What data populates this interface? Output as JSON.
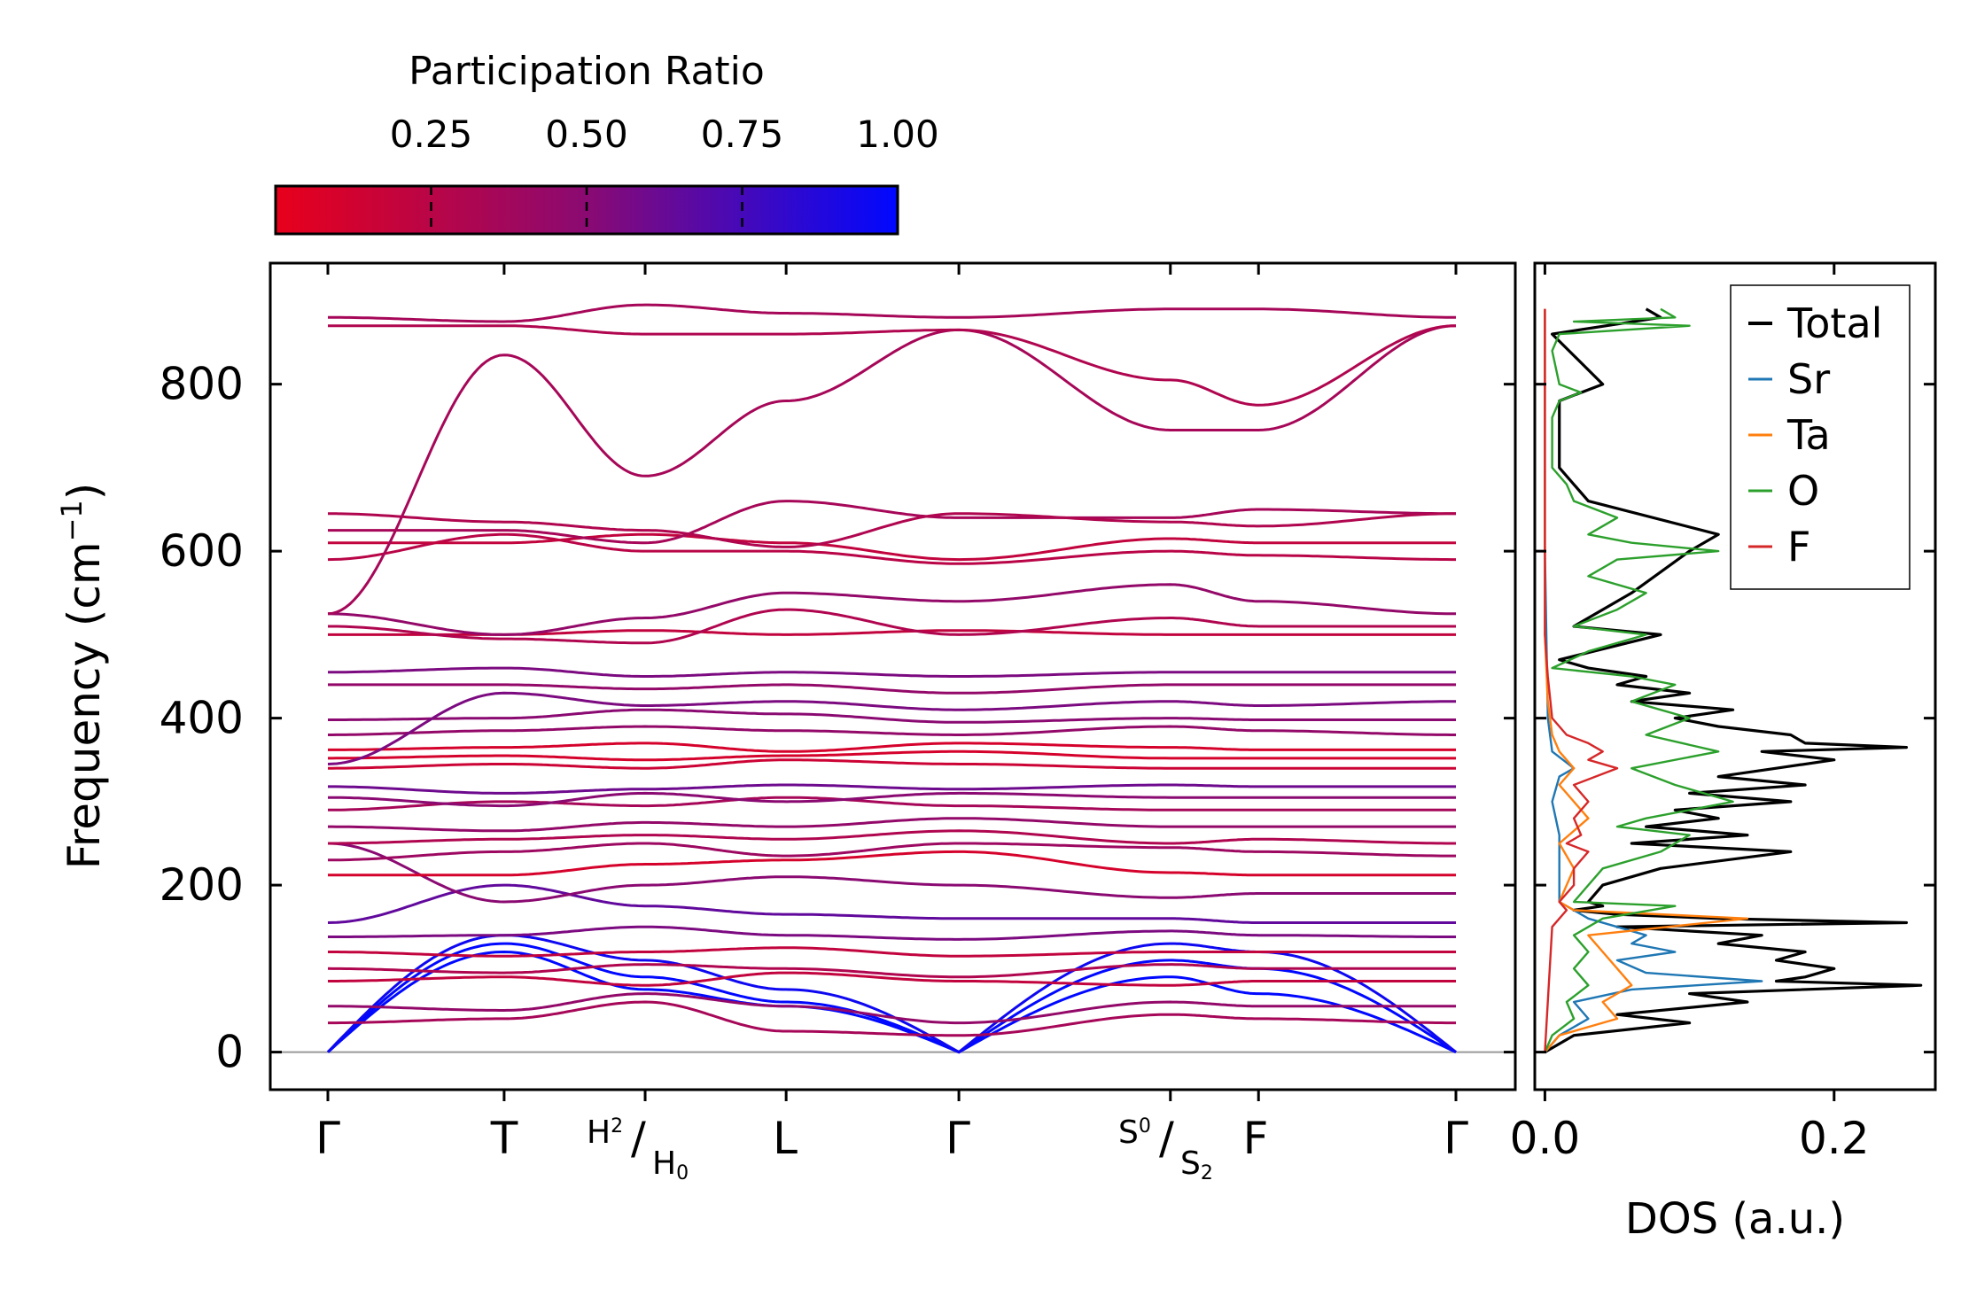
{
  "colorbar": {
    "title": "Participation Ratio",
    "ticks": [
      "0.25",
      "0.50",
      "0.75",
      "1.00"
    ],
    "tick_values": [
      0.25,
      0.5,
      0.75,
      1.0
    ],
    "range": [
      0.0,
      1.0
    ],
    "color_low": "#e8001b",
    "color_mid": "#8a0a72",
    "color_high": "#0008ff"
  },
  "chart_data": [
    {
      "id": "band-structure",
      "type": "line",
      "title": "",
      "ylabel": "Frequency (cm⁻¹)",
      "ylabel_base": "Frequency (cm",
      "ylabel_sup": "−1",
      "ylabel_close": ")",
      "ylim": [
        -45,
        945
      ],
      "yticks": [
        0,
        200,
        400,
        600,
        800
      ],
      "kpath": [
        "Γ",
        "T",
        "H2/H0",
        "L",
        "Γ",
        "S0/S2",
        "F",
        "Γ"
      ],
      "kpath_positions": [
        0.0,
        1.0,
        1.8,
        2.6,
        3.58,
        4.78,
        5.28,
        6.4
      ],
      "labels": {
        "gamma": "Γ",
        "T": "T",
        "L": "L",
        "F": "F",
        "H_main": "H",
        "H_sub_a": "2",
        "H_sub_b": "0",
        "S_main": "S",
        "S_sub_a": "0",
        "S_sub_b": "2"
      },
      "bands": [
        {
          "name": "acoustic-1",
          "pr": 1.0,
          "y": [
            0,
            120,
            75,
            55,
            0,
            90,
            70,
            0
          ]
        },
        {
          "name": "acoustic-2",
          "pr": 1.0,
          "y": [
            0,
            130,
            90,
            60,
            0,
            110,
            100,
            0
          ]
        },
        {
          "name": "acoustic-3",
          "pr": 0.95,
          "y": [
            0,
            140,
            110,
            75,
            0,
            130,
            120,
            0
          ]
        },
        {
          "name": "opt-035",
          "pr": 0.35,
          "y": [
            35,
            40,
            60,
            25,
            20,
            45,
            40,
            35
          ]
        },
        {
          "name": "opt-055",
          "pr": 0.45,
          "y": [
            55,
            50,
            70,
            55,
            35,
            60,
            55,
            55
          ]
        },
        {
          "name": "opt-085",
          "pr": 0.2,
          "y": [
            85,
            90,
            80,
            95,
            85,
            80,
            85,
            85
          ]
        },
        {
          "name": "opt-100",
          "pr": 0.3,
          "y": [
            100,
            95,
            105,
            100,
            90,
            105,
            100,
            100
          ]
        },
        {
          "name": "opt-120",
          "pr": 0.2,
          "y": [
            120,
            115,
            120,
            125,
            115,
            120,
            120,
            120
          ]
        },
        {
          "name": "opt-138",
          "pr": 0.55,
          "y": [
            138,
            140,
            150,
            140,
            135,
            145,
            140,
            138
          ]
        },
        {
          "name": "opt-155",
          "pr": 0.65,
          "y": [
            155,
            200,
            175,
            165,
            160,
            160,
            155,
            155
          ]
        },
        {
          "name": "opt-185",
          "pr": 0.5,
          "y": [
            250,
            180,
            200,
            210,
            200,
            185,
            190,
            190
          ]
        },
        {
          "name": "opt-212",
          "pr": 0.1,
          "y": [
            212,
            212,
            225,
            230,
            240,
            215,
            212,
            212
          ]
        },
        {
          "name": "opt-230",
          "pr": 0.4,
          "y": [
            230,
            240,
            250,
            235,
            250,
            245,
            240,
            235
          ]
        },
        {
          "name": "opt-250",
          "pr": 0.3,
          "y": [
            250,
            255,
            260,
            255,
            265,
            250,
            255,
            250
          ]
        },
        {
          "name": "opt-270",
          "pr": 0.45,
          "y": [
            270,
            265,
            275,
            270,
            280,
            270,
            270,
            270
          ]
        },
        {
          "name": "opt-290",
          "pr": 0.35,
          "y": [
            290,
            300,
            295,
            305,
            295,
            290,
            290,
            290
          ]
        },
        {
          "name": "opt-305",
          "pr": 0.5,
          "y": [
            305,
            295,
            310,
            300,
            310,
            305,
            305,
            305
          ]
        },
        {
          "name": "opt-318",
          "pr": 0.6,
          "y": [
            318,
            310,
            315,
            320,
            315,
            320,
            318,
            318
          ]
        },
        {
          "name": "opt-340",
          "pr": 0.15,
          "y": [
            340,
            345,
            340,
            350,
            345,
            340,
            340,
            340
          ]
        },
        {
          "name": "opt-352",
          "pr": 0.1,
          "y": [
            352,
            355,
            350,
            355,
            360,
            352,
            352,
            352
          ]
        },
        {
          "name": "opt-362",
          "pr": 0.1,
          "y": [
            362,
            365,
            370,
            360,
            370,
            365,
            362,
            362
          ]
        },
        {
          "name": "opt-380",
          "pr": 0.45,
          "y": [
            380,
            385,
            390,
            385,
            380,
            390,
            385,
            380
          ]
        },
        {
          "name": "opt-398",
          "pr": 0.5,
          "y": [
            398,
            400,
            410,
            405,
            395,
            400,
            398,
            398
          ]
        },
        {
          "name": "opt-420",
          "pr": 0.55,
          "y": [
            345,
            430,
            415,
            420,
            410,
            420,
            415,
            420
          ]
        },
        {
          "name": "opt-440",
          "pr": 0.45,
          "y": [
            440,
            440,
            435,
            440,
            430,
            440,
            440,
            440
          ]
        },
        {
          "name": "opt-455",
          "pr": 0.55,
          "y": [
            455,
            460,
            450,
            455,
            450,
            455,
            455,
            455
          ]
        },
        {
          "name": "opt-500",
          "pr": 0.2,
          "y": [
            500,
            500,
            505,
            500,
            505,
            500,
            500,
            500
          ]
        },
        {
          "name": "opt-510",
          "pr": 0.3,
          "y": [
            510,
            495,
            490,
            530,
            500,
            520,
            510,
            510
          ]
        },
        {
          "name": "opt-525",
          "pr": 0.45,
          "y": [
            525,
            500,
            520,
            550,
            540,
            560,
            540,
            525
          ]
        },
        {
          "name": "opt-590",
          "pr": 0.25,
          "y": [
            590,
            620,
            600,
            600,
            585,
            600,
            595,
            590
          ]
        },
        {
          "name": "opt-610",
          "pr": 0.2,
          "y": [
            610,
            610,
            620,
            610,
            590,
            615,
            610,
            610
          ]
        },
        {
          "name": "opt-625",
          "pr": 0.35,
          "y": [
            625,
            625,
            610,
            660,
            640,
            640,
            650,
            645
          ]
        },
        {
          "name": "opt-645",
          "pr": 0.3,
          "y": [
            645,
            635,
            625,
            605,
            645,
            635,
            630,
            645
          ]
        },
        {
          "name": "opt-835",
          "pr": 0.35,
          "y": [
            525,
            835,
            690,
            780,
            865,
            745,
            745,
            870
          ]
        },
        {
          "name": "opt-870",
          "pr": 0.3,
          "y": [
            870,
            870,
            860,
            860,
            865,
            805,
            775,
            870
          ]
        },
        {
          "name": "opt-880",
          "pr": 0.35,
          "y": [
            880,
            875,
            895,
            885,
            880,
            890,
            890,
            880
          ]
        }
      ]
    },
    {
      "id": "dos",
      "type": "line",
      "title": "",
      "xlabel": "DOS (a.u.)",
      "ylabel": "",
      "xlim": [
        -0.007,
        0.27
      ],
      "xticks": [
        "0.0",
        "0.2"
      ],
      "xtick_values": [
        0.0,
        0.2
      ],
      "ylim": [
        -45,
        945
      ],
      "legend_position": "top-right",
      "series": [
        {
          "name": "Total",
          "color": "#000000",
          "freq": [
            0,
            20,
            35,
            45,
            60,
            70,
            80,
            85,
            90,
            100,
            110,
            120,
            130,
            140,
            150,
            155,
            160,
            165,
            170,
            175,
            180,
            200,
            220,
            240,
            250,
            260,
            270,
            280,
            290,
            300,
            310,
            320,
            330,
            340,
            350,
            360,
            365,
            370,
            380,
            390,
            400,
            410,
            420,
            430,
            440,
            450,
            460,
            470,
            500,
            510,
            550,
            600,
            620,
            660,
            700,
            780,
            800,
            860,
            880,
            890
          ],
          "dos": [
            0.0,
            0.02,
            0.1,
            0.05,
            0.14,
            0.1,
            0.26,
            0.16,
            0.18,
            0.2,
            0.16,
            0.18,
            0.12,
            0.15,
            0.05,
            0.25,
            0.12,
            0.05,
            0.02,
            0.04,
            0.03,
            0.04,
            0.08,
            0.17,
            0.06,
            0.14,
            0.07,
            0.12,
            0.09,
            0.17,
            0.1,
            0.18,
            0.12,
            0.16,
            0.2,
            0.15,
            0.25,
            0.18,
            0.17,
            0.12,
            0.09,
            0.13,
            0.06,
            0.1,
            0.05,
            0.07,
            0.03,
            0.01,
            0.08,
            0.02,
            0.06,
            0.1,
            0.12,
            0.03,
            0.01,
            0.01,
            0.04,
            0.005,
            0.08,
            0.07
          ]
        },
        {
          "name": "Sr",
          "color": "#1f77b4",
          "freq": [
            0,
            20,
            40,
            60,
            75,
            85,
            95,
            110,
            120,
            130,
            140,
            160,
            180,
            220,
            260,
            300,
            330,
            340,
            360,
            400,
            600,
            890
          ],
          "dos": [
            0.0,
            0.01,
            0.03,
            0.02,
            0.06,
            0.15,
            0.07,
            0.05,
            0.09,
            0.06,
            0.07,
            0.03,
            0.01,
            0.01,
            0.01,
            0.005,
            0.01,
            0.02,
            0.005,
            0.002,
            0.0,
            0.0
          ]
        },
        {
          "name": "Ta",
          "color": "#ff7f0e",
          "freq": [
            0,
            20,
            40,
            60,
            80,
            100,
            120,
            140,
            160,
            170,
            180,
            220,
            250,
            280,
            300,
            320,
            340,
            360,
            380,
            420,
            500,
            890
          ],
          "dos": [
            0.0,
            0.01,
            0.05,
            0.04,
            0.06,
            0.05,
            0.04,
            0.03,
            0.14,
            0.02,
            0.01,
            0.02,
            0.01,
            0.03,
            0.02,
            0.01,
            0.02,
            0.01,
            0.005,
            0.002,
            0.0,
            0.0
          ]
        },
        {
          "name": "O",
          "color": "#2ca02c",
          "freq": [
            0,
            20,
            40,
            60,
            80,
            100,
            120,
            140,
            160,
            175,
            180,
            200,
            220,
            240,
            260,
            270,
            280,
            300,
            320,
            340,
            360,
            380,
            400,
            420,
            440,
            450,
            460,
            480,
            500,
            510,
            530,
            550,
            570,
            590,
            600,
            610,
            620,
            640,
            660,
            680,
            700,
            760,
            780,
            790,
            800,
            840,
            860,
            870,
            875,
            880,
            890
          ],
          "dos": [
            0.0,
            0.005,
            0.02,
            0.015,
            0.03,
            0.02,
            0.03,
            0.02,
            0.04,
            0.09,
            0.02,
            0.03,
            0.04,
            0.08,
            0.1,
            0.05,
            0.07,
            0.13,
            0.09,
            0.06,
            0.12,
            0.07,
            0.1,
            0.06,
            0.09,
            0.06,
            0.005,
            0.03,
            0.07,
            0.02,
            0.05,
            0.07,
            0.03,
            0.05,
            0.12,
            0.06,
            0.03,
            0.05,
            0.02,
            0.015,
            0.005,
            0.005,
            0.01,
            0.025,
            0.01,
            0.005,
            0.01,
            0.1,
            0.02,
            0.09,
            0.08
          ]
        },
        {
          "name": "F",
          "color": "#d62728",
          "freq": [
            0,
            150,
            170,
            180,
            200,
            220,
            240,
            250,
            260,
            280,
            300,
            320,
            340,
            350,
            360,
            370,
            380,
            400,
            450,
            500,
            890
          ],
          "dos": [
            0.0,
            0.005,
            0.015,
            0.01,
            0.02,
            0.02,
            0.03,
            0.015,
            0.025,
            0.02,
            0.03,
            0.02,
            0.05,
            0.03,
            0.04,
            0.03,
            0.015,
            0.005,
            0.002,
            0.0,
            0.0
          ]
        }
      ]
    }
  ]
}
